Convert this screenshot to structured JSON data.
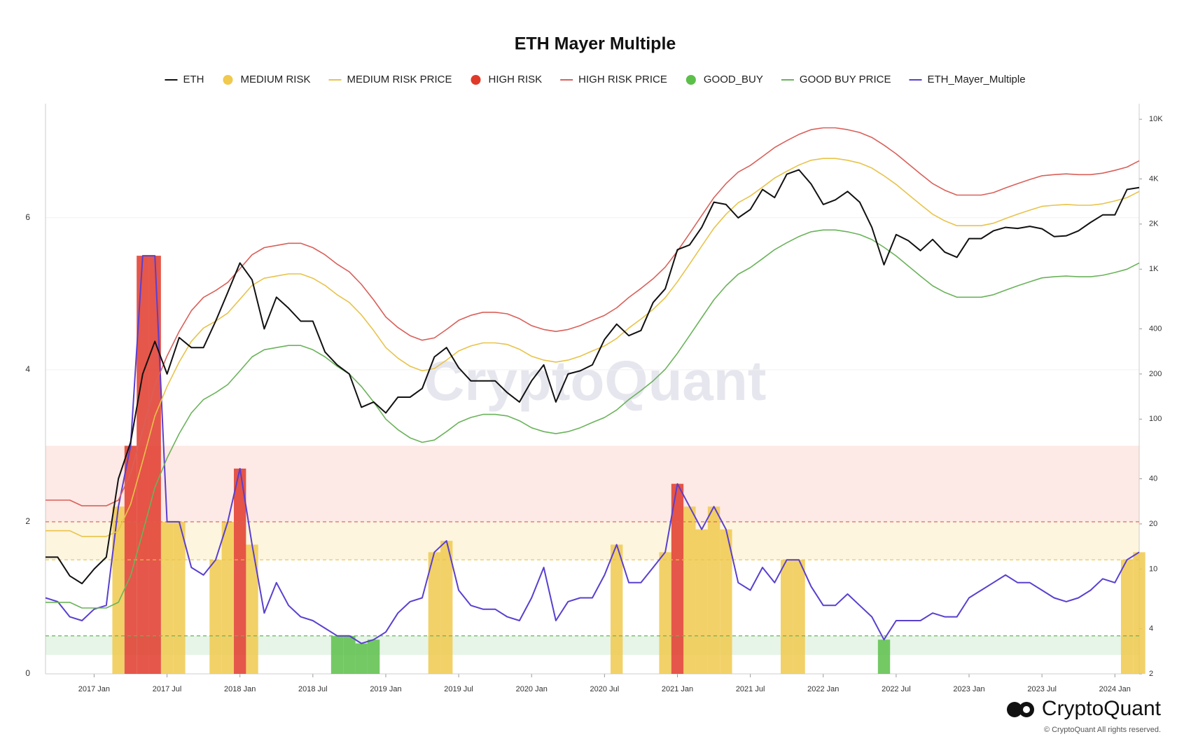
{
  "chart_data": {
    "type": "line",
    "title": "ETH Mayer Multiple",
    "watermark": "CryptoQuant",
    "logo": "CryptoQuant",
    "copyright": "© CryptoQuant All rights reserved.",
    "x": [
      "2016-09",
      "2016-10",
      "2016-11",
      "2016-12",
      "2017-01",
      "2017-02",
      "2017-03",
      "2017-04",
      "2017-05",
      "2017-06",
      "2017-07",
      "2017-08",
      "2017-09",
      "2017-10",
      "2017-11",
      "2017-12",
      "2018-01",
      "2018-02",
      "2018-03",
      "2018-04",
      "2018-05",
      "2018-06",
      "2018-07",
      "2018-08",
      "2018-09",
      "2018-10",
      "2018-11",
      "2018-12",
      "2019-01",
      "2019-02",
      "2019-03",
      "2019-04",
      "2019-05",
      "2019-06",
      "2019-07",
      "2019-08",
      "2019-09",
      "2019-10",
      "2019-11",
      "2019-12",
      "2020-01",
      "2020-02",
      "2020-03",
      "2020-04",
      "2020-05",
      "2020-06",
      "2020-07",
      "2020-08",
      "2020-09",
      "2020-10",
      "2020-11",
      "2020-12",
      "2021-01",
      "2021-02",
      "2021-03",
      "2021-04",
      "2021-05",
      "2021-06",
      "2021-07",
      "2021-08",
      "2021-09",
      "2021-10",
      "2021-11",
      "2021-12",
      "2022-01",
      "2022-02",
      "2022-03",
      "2022-04",
      "2022-05",
      "2022-06",
      "2022-07",
      "2022-08",
      "2022-09",
      "2022-10",
      "2022-11",
      "2022-12",
      "2023-01",
      "2023-02",
      "2023-03",
      "2023-04",
      "2023-05",
      "2023-06",
      "2023-07",
      "2023-08",
      "2023-09",
      "2023-10",
      "2023-11",
      "2023-12",
      "2024-01",
      "2024-02",
      "2024-03"
    ],
    "xlim": [
      "2016-09",
      "2024-03"
    ],
    "xticks": [
      {
        "value": "2017-01",
        "label": "2017 Jan"
      },
      {
        "value": "2017-07",
        "label": "2017 Jul"
      },
      {
        "value": "2018-01",
        "label": "2018 Jan"
      },
      {
        "value": "2018-07",
        "label": "2018 Jul"
      },
      {
        "value": "2019-01",
        "label": "2019 Jan"
      },
      {
        "value": "2019-07",
        "label": "2019 Jul"
      },
      {
        "value": "2020-01",
        "label": "2020 Jan"
      },
      {
        "value": "2020-07",
        "label": "2020 Jul"
      },
      {
        "value": "2021-01",
        "label": "2021 Jan"
      },
      {
        "value": "2021-07",
        "label": "2021 Jul"
      },
      {
        "value": "2022-01",
        "label": "2022 Jan"
      },
      {
        "value": "2022-07",
        "label": "2022 Jul"
      },
      {
        "value": "2023-01",
        "label": "2023 Jan"
      },
      {
        "value": "2023-07",
        "label": "2023 Jul"
      },
      {
        "value": "2024-01",
        "label": "2024 Jan"
      }
    ],
    "ylim": [
      0,
      7.5
    ],
    "yticks": [
      0,
      2,
      4,
      6
    ],
    "y2lim": [
      2,
      12700
    ],
    "y2scale": "log",
    "y2ticks": [
      2,
      4,
      10,
      20,
      40,
      100,
      200,
      400,
      {
        "value": 1000,
        "label": "1K"
      },
      {
        "value": 2000,
        "label": "2K"
      },
      {
        "value": 4000,
        "label": "4K"
      },
      {
        "value": 10000,
        "label": "10K"
      }
    ],
    "grid": true,
    "bands": [
      {
        "from": 2,
        "to": 3,
        "color": "#fde9e5"
      },
      {
        "from": 1.5,
        "to": 2,
        "color": "#fdf5de"
      },
      {
        "from": 0.25,
        "to": 0.5,
        "color": "#e6f5e7"
      }
    ],
    "reference_lines": [
      {
        "value": 2,
        "color": "#d9605a"
      },
      {
        "value": 1.5,
        "color": "#e8c34a"
      },
      {
        "value": 0.5,
        "color": "#6ab35a"
      }
    ],
    "series": [
      {
        "name": "ETH",
        "kind": "line",
        "axis": "y2",
        "color": "#111111",
        "values": [
          12,
          12,
          9,
          8,
          10,
          12,
          40,
          70,
          200,
          330,
          200,
          350,
          300,
          300,
          450,
          700,
          1100,
          850,
          400,
          650,
          550,
          450,
          450,
          280,
          230,
          200,
          120,
          130,
          110,
          140,
          140,
          160,
          260,
          300,
          220,
          180,
          180,
          180,
          150,
          130,
          180,
          230,
          130,
          200,
          210,
          230,
          340,
          430,
          360,
          390,
          600,
          740,
          1350,
          1450,
          1900,
          2800,
          2700,
          2200,
          2500,
          3400,
          3000,
          4300,
          4600,
          3700,
          2700,
          2900,
          3300,
          2800,
          1900,
          1070,
          1700,
          1550,
          1330,
          1580,
          1300,
          1200,
          1600,
          1600,
          1800,
          1900,
          1870,
          1930,
          1860,
          1650,
          1670,
          1800,
          2050,
          2300,
          2300,
          3400,
          3500
        ]
      },
      {
        "name": "MEDIUM RISK",
        "kind": "column",
        "axis": "y",
        "color": "#f0c94d",
        "values": [
          null,
          null,
          null,
          null,
          null,
          null,
          2.2,
          null,
          null,
          null,
          2.0,
          2.0,
          null,
          null,
          1.5,
          2.0,
          null,
          1.7,
          null,
          null,
          null,
          null,
          null,
          null,
          null,
          null,
          null,
          null,
          null,
          null,
          null,
          null,
          1.6,
          1.75,
          null,
          null,
          null,
          null,
          null,
          null,
          null,
          null,
          null,
          null,
          null,
          null,
          null,
          1.7,
          null,
          null,
          null,
          1.6,
          null,
          2.2,
          1.9,
          2.2,
          1.9,
          null,
          null,
          null,
          null,
          1.5,
          1.5,
          null,
          null,
          null,
          null,
          null,
          null,
          null,
          null,
          null,
          null,
          null,
          null,
          null,
          null,
          null,
          null,
          null,
          null,
          null,
          null,
          null,
          null,
          null,
          null,
          null,
          null,
          1.5,
          1.6
        ]
      },
      {
        "name": "MEDIUM RISK PRICE",
        "kind": "line",
        "axis": "y2",
        "color": "#e8c34a",
        "values": [
          18,
          18,
          18,
          16.5,
          16.5,
          16.5,
          18,
          27,
          52.5,
          105,
          165,
          240,
          330,
          405,
          450,
          510,
          630,
          780,
          870,
          900,
          930,
          930,
          870,
          780,
          675,
          600,
          495,
          390,
          300,
          255,
          225,
          210,
          217.5,
          247.5,
          285,
          307.5,
          322.5,
          322.5,
          315,
          292.5,
          262.5,
          247.5,
          240,
          247.5,
          262.5,
          285,
          307.5,
          345,
          405,
          465,
          540,
          645,
          825,
          1080,
          1425,
          1875,
          2325,
          2775,
          3075,
          3525,
          4050,
          4500,
          4950,
          5325,
          5475,
          5475,
          5325,
          5100,
          4725,
          4200,
          3675,
          3150,
          2700,
          2325,
          2100,
          1950,
          1950,
          1950,
          2025,
          2175,
          2325,
          2475,
          2625,
          2670,
          2700,
          2670,
          2670,
          2730,
          2850,
          3000,
          3300
        ]
      },
      {
        "name": "HIGH RISK",
        "kind": "column",
        "axis": "y",
        "color": "#e03a2a",
        "values": [
          null,
          null,
          null,
          null,
          null,
          null,
          null,
          3.0,
          5.5,
          5.5,
          null,
          null,
          null,
          null,
          null,
          null,
          2.7,
          null,
          null,
          null,
          null,
          null,
          null,
          null,
          null,
          null,
          null,
          null,
          null,
          null,
          null,
          null,
          null,
          null,
          null,
          null,
          null,
          null,
          null,
          null,
          null,
          null,
          null,
          null,
          null,
          null,
          null,
          null,
          null,
          null,
          null,
          null,
          2.5,
          null,
          null,
          null,
          null,
          null,
          null,
          null,
          null,
          null,
          null,
          null,
          null,
          null,
          null,
          null,
          null,
          null,
          null,
          null,
          null,
          null,
          null,
          null,
          null,
          null,
          null,
          null,
          null,
          null,
          null,
          null,
          null,
          null,
          null,
          null,
          null,
          null,
          null
        ]
      },
      {
        "name": "HIGH RISK PRICE",
        "kind": "line",
        "axis": "y2",
        "color": "#d9605a",
        "values": [
          28.8,
          28.8,
          28.8,
          26.4,
          26.4,
          26.4,
          28.8,
          43.2,
          84,
          168,
          264,
          384,
          528,
          648,
          720,
          816,
          1008,
          1248,
          1392,
          1440,
          1488,
          1488,
          1392,
          1248,
          1080,
          960,
          792,
          624,
          480,
          408,
          360,
          336,
          348,
          396,
          456,
          492,
          516,
          516,
          504,
          468,
          420,
          396,
          384,
          396,
          420,
          456,
          492,
          552,
          648,
          744,
          864,
          1032,
          1320,
          1728,
          2280,
          3000,
          3720,
          4440,
          4920,
          5640,
          6480,
          7200,
          7920,
          8520,
          8760,
          8760,
          8520,
          8160,
          7560,
          6720,
          5880,
          5040,
          4320,
          3720,
          3360,
          3120,
          3120,
          3120,
          3240,
          3480,
          3720,
          3960,
          4200,
          4272,
          4320,
          4272,
          4272,
          4368,
          4560,
          4800,
          5280
        ]
      },
      {
        "name": "GOOD_BUY",
        "kind": "column",
        "axis": "y",
        "color": "#5cbf4a",
        "values": [
          null,
          null,
          null,
          null,
          null,
          null,
          null,
          null,
          null,
          null,
          null,
          null,
          null,
          null,
          null,
          null,
          null,
          null,
          null,
          null,
          null,
          null,
          null,
          null,
          0.5,
          0.5,
          0.4,
          0.45,
          null,
          null,
          null,
          null,
          null,
          null,
          null,
          null,
          null,
          null,
          null,
          null,
          null,
          null,
          null,
          null,
          null,
          null,
          null,
          null,
          null,
          null,
          null,
          null,
          null,
          null,
          null,
          null,
          null,
          null,
          null,
          null,
          null,
          null,
          null,
          null,
          null,
          null,
          null,
          null,
          null,
          0.45,
          null,
          null,
          null,
          null,
          null,
          null,
          null,
          null,
          null,
          null,
          null,
          null,
          null,
          null,
          null,
          null,
          null,
          null,
          null,
          null,
          null
        ]
      },
      {
        "name": "GOOD BUY PRICE",
        "kind": "line",
        "axis": "y2",
        "color": "#6ab35a",
        "values": [
          6,
          6,
          6,
          5.5,
          5.5,
          5.5,
          6,
          9,
          17.5,
          35,
          55,
          80,
          110,
          135,
          150,
          170,
          210,
          260,
          290,
          300,
          310,
          310,
          290,
          260,
          225,
          200,
          165,
          130,
          100,
          85,
          75,
          70,
          72.5,
          82.5,
          95,
          102.5,
          107.5,
          107.5,
          105,
          97.5,
          87.5,
          82.5,
          80,
          82.5,
          87.5,
          95,
          102.5,
          115,
          135,
          155,
          180,
          215,
          275,
          360,
          475,
          625,
          775,
          925,
          1025,
          1175,
          1350,
          1500,
          1650,
          1775,
          1825,
          1825,
          1775,
          1700,
          1575,
          1400,
          1225,
          1050,
          900,
          775,
          700,
          650,
          650,
          650,
          675,
          725,
          775,
          825,
          875,
          890,
          900,
          890,
          890,
          910,
          950,
          1000,
          1100
        ]
      },
      {
        "name": "ETH_Mayer_Multiple",
        "kind": "line",
        "axis": "y",
        "color": "#5a3fd0",
        "values": [
          1.0,
          0.95,
          0.75,
          0.7,
          0.85,
          0.9,
          2.2,
          3.0,
          5.5,
          5.5,
          2.0,
          2.0,
          1.4,
          1.3,
          1.5,
          2.0,
          2.7,
          1.7,
          0.8,
          1.2,
          0.9,
          0.75,
          0.7,
          0.6,
          0.5,
          0.5,
          0.4,
          0.45,
          0.55,
          0.8,
          0.95,
          1.0,
          1.6,
          1.75,
          1.1,
          0.9,
          0.85,
          0.85,
          0.75,
          0.7,
          1.0,
          1.4,
          0.7,
          0.95,
          1.0,
          1.0,
          1.3,
          1.7,
          1.2,
          1.2,
          1.4,
          1.6,
          2.5,
          2.2,
          1.9,
          2.2,
          1.9,
          1.2,
          1.1,
          1.4,
          1.2,
          1.5,
          1.5,
          1.15,
          0.9,
          0.9,
          1.05,
          0.9,
          0.75,
          0.45,
          0.7,
          0.7,
          0.7,
          0.8,
          0.75,
          0.75,
          1.0,
          1.1,
          1.2,
          1.3,
          1.2,
          1.2,
          1.1,
          1.0,
          0.95,
          1.0,
          1.1,
          1.25,
          1.2,
          1.5,
          1.6
        ]
      }
    ]
  }
}
